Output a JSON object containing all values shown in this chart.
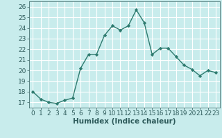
{
  "title": "",
  "xlabel": "Humidex (Indice chaleur)",
  "x": [
    0,
    1,
    2,
    3,
    4,
    5,
    6,
    7,
    8,
    9,
    10,
    11,
    12,
    13,
    14,
    15,
    16,
    17,
    18,
    19,
    20,
    21,
    22,
    23
  ],
  "y": [
    18.0,
    17.3,
    17.0,
    16.9,
    17.2,
    17.4,
    20.2,
    21.5,
    21.5,
    23.3,
    24.2,
    23.8,
    24.2,
    25.7,
    24.5,
    21.5,
    22.1,
    22.1,
    21.3,
    20.5,
    20.1,
    19.5,
    20.0,
    19.8
  ],
  "line_color": "#2d7a6e",
  "marker": "D",
  "marker_size": 2.2,
  "line_width": 1.0,
  "bg_color": "#c8ecec",
  "grid_color": "#ffffff",
  "ylim": [
    16.5,
    26.5
  ],
  "xlim": [
    -0.5,
    23.5
  ],
  "yticks": [
    17,
    18,
    19,
    20,
    21,
    22,
    23,
    24,
    25,
    26
  ],
  "xticks": [
    0,
    1,
    2,
    3,
    4,
    5,
    6,
    7,
    8,
    9,
    10,
    11,
    12,
    13,
    14,
    15,
    16,
    17,
    18,
    19,
    20,
    21,
    22,
    23
  ],
  "tick_fontsize": 6.5,
  "label_fontsize": 7.5
}
